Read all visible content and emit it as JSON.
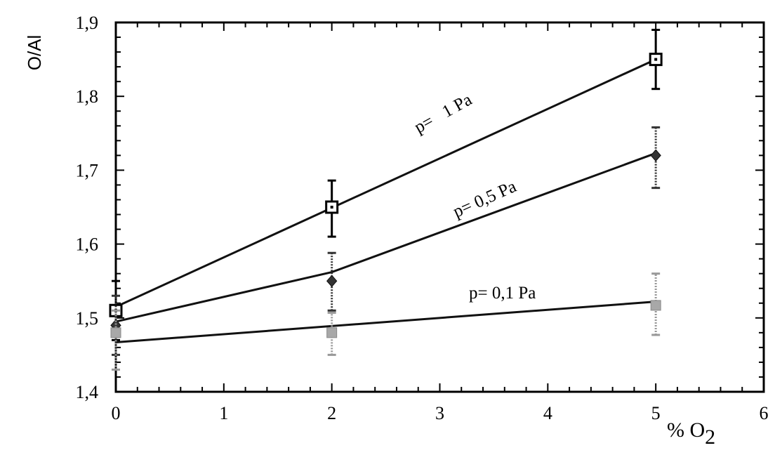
{
  "chart_data": {
    "type": "line",
    "xlabel": "% O",
    "xlabel_sub": "2",
    "ylabel": "O/Al",
    "xlim": [
      0,
      6
    ],
    "ylim": [
      1.4,
      1.9
    ],
    "x_ticks": [
      "0",
      "1",
      "2",
      "3",
      "4",
      "5",
      "6"
    ],
    "y_ticks": [
      "1,4",
      "1,5",
      "1,6",
      "1,7",
      "1,8",
      "1,9"
    ],
    "series": [
      {
        "name": "p=   1 Pa",
        "marker": "open-square",
        "color": "#000000",
        "points": [
          {
            "x": 0,
            "y": 1.51,
            "err_low": 1.47,
            "err_high": 1.55
          },
          {
            "x": 2,
            "y": 1.65,
            "err_low": 1.61,
            "err_high": 1.686
          },
          {
            "x": 5,
            "y": 1.85,
            "err_low": 1.81,
            "err_high": 1.89
          }
        ],
        "fit": [
          [
            0,
            1.515
          ],
          [
            5,
            1.85
          ]
        ]
      },
      {
        "name": "p= 0,5 Pa",
        "marker": "diamond",
        "color": "#333333",
        "points": [
          {
            "x": 0,
            "y": 1.49,
            "err_low": 1.45,
            "err_high": 1.53
          },
          {
            "x": 2,
            "y": 1.55,
            "err_low": 1.51,
            "err_high": 1.588
          },
          {
            "x": 5,
            "y": 1.72,
            "err_low": 1.676,
            "err_high": 1.758
          }
        ],
        "fit": [
          [
            0,
            1.495
          ],
          [
            2,
            1.562
          ],
          [
            5,
            1.723
          ]
        ]
      },
      {
        "name": "p= 0,1 Pa",
        "marker": "gray-square",
        "color": "#999999",
        "points": [
          {
            "x": 0,
            "y": 1.48,
            "err_low": 1.43,
            "err_high": 1.51
          },
          {
            "x": 2,
            "y": 1.48,
            "err_low": 1.45,
            "err_high": 1.507
          },
          {
            "x": 5,
            "y": 1.517,
            "err_low": 1.477,
            "err_high": 1.56
          }
        ],
        "fit": [
          [
            0,
            1.467
          ],
          [
            5,
            1.522
          ]
        ]
      }
    ],
    "grid": false,
    "legend": "inline labels"
  }
}
